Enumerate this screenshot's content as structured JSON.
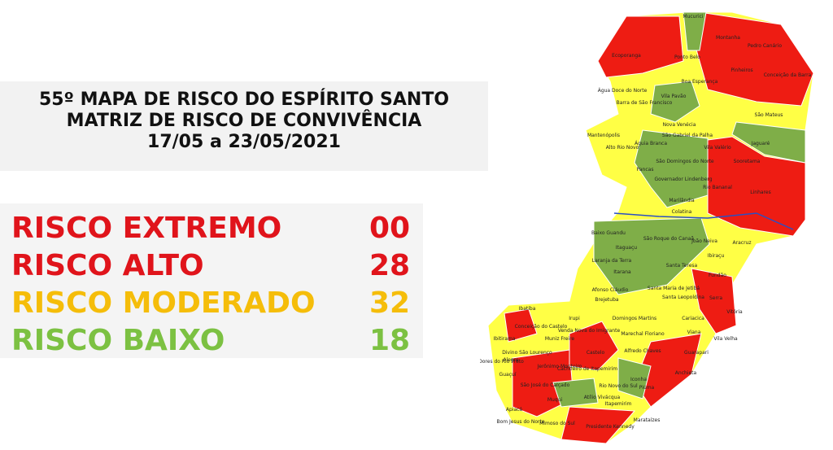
{
  "header": {
    "lines": [
      "55º MAPA DE RISCO DO ESPÍRITO SANTO",
      "MATRIZ DE RISCO DE CONVIVÊNCIA",
      "17/05 a 23/05/2021"
    ]
  },
  "legend": [
    {
      "label": "RISCO EXTREMO",
      "count": "00"
    },
    {
      "label": "RISCO ALTO",
      "count": "28"
    },
    {
      "label": "RISCO MODERADO",
      "count": "32"
    },
    {
      "label": "RISCO BAIXO",
      "count": "18"
    }
  ],
  "map": {
    "labels": [
      "Mucurici",
      "Montanha",
      "Ponto Belo",
      "Ecoporanga",
      "Pinheiros",
      "Boa Esperança",
      "Pedro Canário",
      "Conceição da Barra",
      "Água Doce do Norte",
      "Barra de São Francisco",
      "Vila Pavão",
      "Nova Venécia",
      "São Mateus",
      "Mantenópolis",
      "Alto Rio Novo",
      "Águia Branca",
      "São Gabriel da Palha",
      "Vila Valério",
      "Jaguaré",
      "Sooretama",
      "Pancas",
      "São Domingos do Norte",
      "Governador Lindenberg",
      "Rio Bananal",
      "Linhares",
      "Marilândia",
      "Colatina",
      "Baixo Guandu",
      "São Roque do Canaã",
      "João Neiva",
      "Aracruz",
      "Itaguaçu",
      "Laranja da Terra",
      "Santa Teresa",
      "Ibiraçu",
      "Itarana",
      "Fundão",
      "Afonso Cláudio",
      "Santa Maria de Jetibá",
      "Serra",
      "Brejetuba",
      "Santa Leopoldina",
      "Vitória",
      "Ibatiba",
      "Domingos Martins",
      "Cariacica",
      "Irupi",
      "Conceição do Castelo",
      "Venda Nova do Imigrante",
      "Marechal Floriano",
      "Viana",
      "Vila Velha",
      "Ibitirama",
      "Muniz Freire",
      "Castelo",
      "Alfredo Chaves",
      "Guarapari",
      "Alegre",
      "Divino São Lourenço",
      "Dores do Rio Preto",
      "Guaçuí",
      "Jerônimo Monteiro",
      "Cachoeiro de Itapemirim",
      "Iconha",
      "Anchieta",
      "Muqui",
      "Atílio Vivácqua",
      "Rio Novo do Sul",
      "Piúma",
      "Itapemirim",
      "Mimoso do Sul",
      "Presidente Kennedy",
      "Marataízes",
      "Apiacá",
      "Bom Jesus do Norte",
      "São José do Calçado"
    ]
  }
}
